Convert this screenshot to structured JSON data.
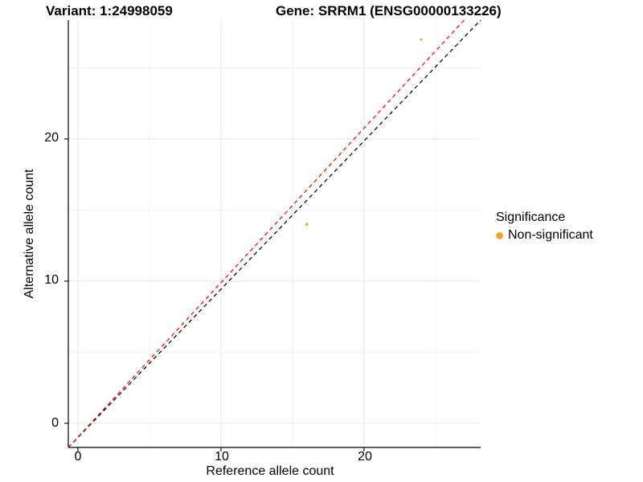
{
  "titles": {
    "variant": "Variant: 1:24998059",
    "gene": "Gene: SRRM1 (ENSG00000133226)"
  },
  "axes": {
    "x": {
      "label": "Reference allele count",
      "ticks": [
        "0",
        "10",
        "20"
      ]
    },
    "y": {
      "label": "Alternative allele count",
      "ticks": [
        "0",
        "10",
        "20"
      ]
    }
  },
  "legend": {
    "title": "Significance",
    "items": [
      {
        "label": "Non-significant",
        "color": "#F6A420"
      }
    ]
  },
  "colors": {
    "point_orange": "#F6A420",
    "fit_line_red": "#FF0000",
    "identity_line_black": "#000000",
    "axis_black": "#000000",
    "grid_major": "#E6E6E6",
    "grid_minor": "#F1F1F1"
  },
  "chart_data": {
    "type": "scatter",
    "title_left": "Variant: 1:24998059",
    "title_right": "Gene: SRRM1 (ENSG00000133226)",
    "xlabel": "Reference allele count",
    "ylabel": "Alternative allele count",
    "xlim": [
      -0.67,
      28.15
    ],
    "ylim": [
      -1.7,
      28.36
    ],
    "x_major_ticks": [
      0,
      10,
      20
    ],
    "x_minor_ticks": [
      5,
      15,
      25
    ],
    "y_major_ticks": [
      0,
      10,
      20
    ],
    "y_minor_ticks": [
      5,
      15,
      25
    ],
    "grid": true,
    "legend_position": "right",
    "series": [
      {
        "name": "Non-significant",
        "color": "#F6A420",
        "points": [
          {
            "x": 16,
            "y": 14,
            "r": 1.8
          },
          {
            "x": 24,
            "y": 27,
            "r": 1.5
          }
        ]
      }
    ],
    "reference_lines": [
      {
        "name": "identity-line",
        "color": "#000000",
        "style": "dashed",
        "x1": -0.67,
        "y1": -1.7,
        "x2": 28.15,
        "y2": 28.36
      },
      {
        "name": "fit-line",
        "color": "#FF0000",
        "style": "dashed",
        "x1": -0.67,
        "y1": -1.7,
        "x2": 27.0,
        "y2": 28.36
      }
    ]
  }
}
